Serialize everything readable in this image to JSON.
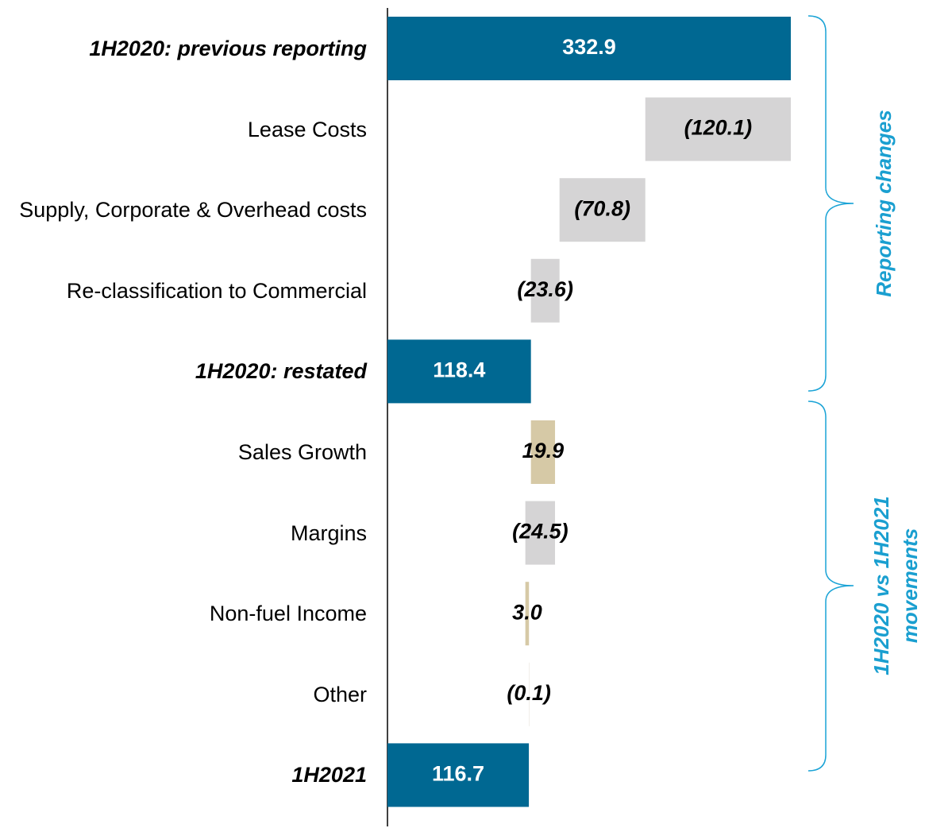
{
  "chart_data": {
    "type": "waterfall",
    "orientation": "horizontal",
    "categories": [
      "1H2020: previous reporting",
      "Lease Costs",
      "Supply, Corporate & Overhead costs",
      "Re-classification to Commercial",
      "1H2020: restated",
      "Sales Growth",
      "Margins",
      "Non-fuel Income",
      "Other",
      "1H2021"
    ],
    "measure": [
      "absolute",
      "relative",
      "relative",
      "relative",
      "absolute",
      "relative",
      "relative",
      "relative",
      "relative",
      "absolute"
    ],
    "values": [
      332.9,
      -120.1,
      -70.8,
      -23.6,
      118.4,
      19.9,
      -24.5,
      3.0,
      -0.1,
      116.7
    ],
    "value_labels": [
      "332.9",
      "(120.1)",
      "(70.8)",
      "(23.6)",
      "118.4",
      "19.9",
      "(24.5)",
      "3.0",
      "(0.1)",
      "116.7"
    ],
    "colors": [
      "#006892",
      "#d5d4d5",
      "#d5d4d5",
      "#d5d4d5",
      "#006892",
      "#d6c9a6",
      "#d5d4d5",
      "#d6c9a6",
      "#f0eee8",
      "#006892"
    ],
    "xlim": [
      0,
      332.9
    ],
    "annotations": [
      {
        "lines": [
          "Reporting changes"
        ]
      },
      {
        "lines": [
          "1H2020 vs 1H2021",
          "movements"
        ]
      }
    ]
  }
}
